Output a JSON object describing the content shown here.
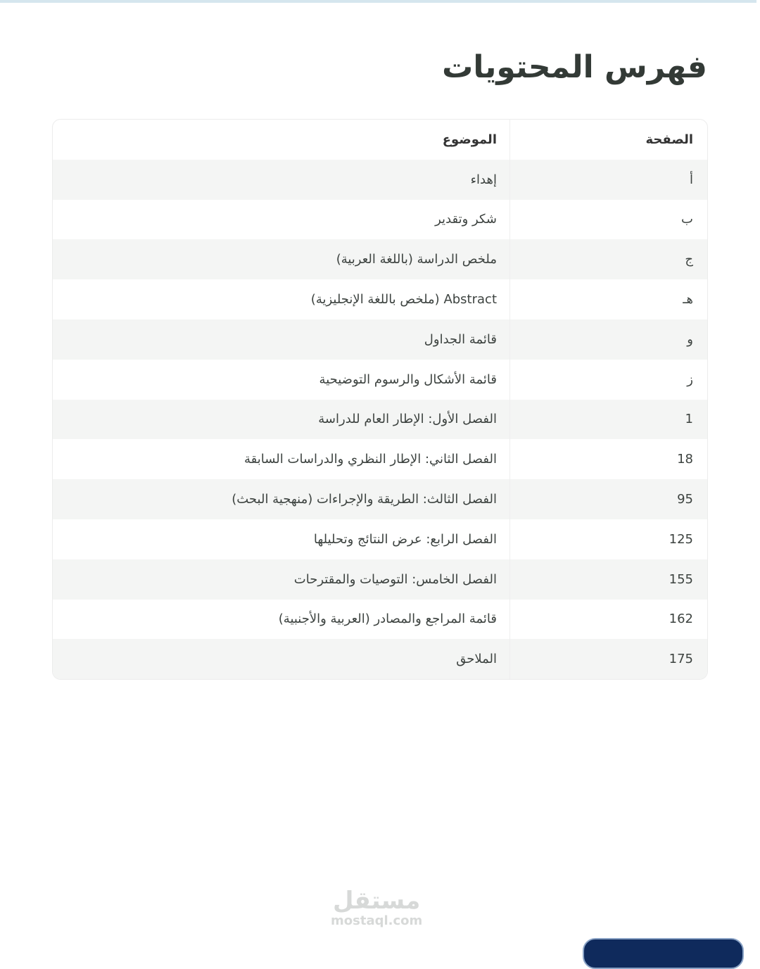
{
  "title": "فهرس المحتويات",
  "table": {
    "headers": {
      "page": "الصفحة",
      "topic": "الموضوع"
    },
    "rows": [
      {
        "page": "أ",
        "topic": "إهداء"
      },
      {
        "page": "ب",
        "topic": "شكر وتقدير"
      },
      {
        "page": "ج",
        "topic": "ملخص الدراسة (باللغة العربية)"
      },
      {
        "page": "هـ",
        "topic": "Abstract (ملخص باللغة الإنجليزية)"
      },
      {
        "page": "و",
        "topic": "قائمة الجداول"
      },
      {
        "page": "ز",
        "topic": "قائمة الأشكال والرسوم التوضيحية"
      },
      {
        "page": "1",
        "topic": "الفصل الأول: الإطار العام للدراسة"
      },
      {
        "page": "18",
        "topic": "الفصل الثاني: الإطار النظري والدراسات السابقة"
      },
      {
        "page": "95",
        "topic": "الفصل الثالث: الطريقة والإجراءات (منهجية البحث)"
      },
      {
        "page": "125",
        "topic": "الفصل الرابع: عرض النتائج وتحليلها"
      },
      {
        "page": "155",
        "topic": "الفصل الخامس: التوصيات والمقترحات"
      },
      {
        "page": "162",
        "topic": "قائمة المراجع والمصادر (العربية والأجنبية)"
      },
      {
        "page": "175",
        "topic": "الملاحق"
      }
    ]
  },
  "watermark": {
    "arabic": "مستقل",
    "latin": "mostaql.com"
  }
}
